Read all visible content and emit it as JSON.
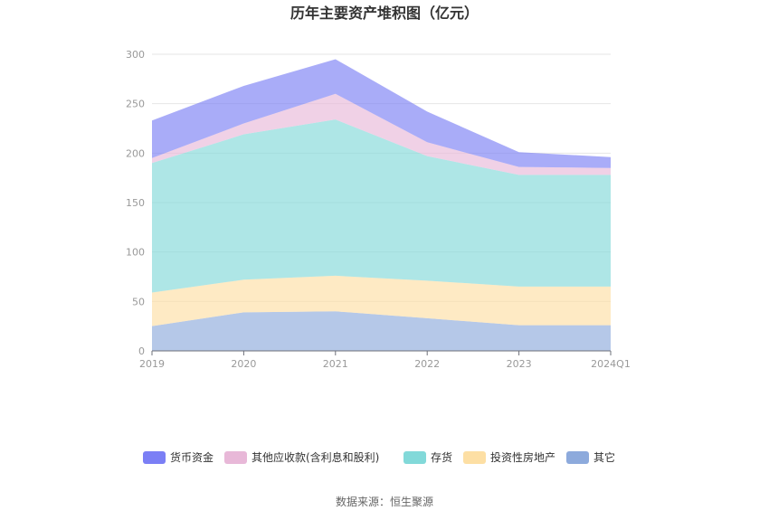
{
  "chart_data": {
    "type": "area",
    "stacked": true,
    "title": "历年主要资产堆积图（亿元）",
    "categories": [
      "2019",
      "2020",
      "2021",
      "2022",
      "2023",
      "2024Q1"
    ],
    "ylim": [
      0,
      300
    ],
    "yticks": [
      0,
      50,
      100,
      150,
      200,
      250,
      300
    ],
    "grid": true,
    "legend_position": "bottom",
    "series": [
      {
        "name": "货币资金",
        "color": "#7b7ff5",
        "values": [
          38,
          38,
          35,
          31,
          15,
          11
        ]
      },
      {
        "name": "其他应收款(含利息和股利)",
        "color": "#e8b8d8",
        "values": [
          5,
          11,
          26,
          14,
          8,
          7
        ]
      },
      {
        "name": "存货",
        "color": "#82d9d9",
        "values": [
          131,
          147,
          158,
          126,
          113,
          113
        ]
      },
      {
        "name": "投资性房地产",
        "color": "#fddfa4",
        "values": [
          34,
          33,
          36,
          38,
          39,
          39
        ]
      },
      {
        "name": "其它",
        "color": "#8daadc",
        "values": [
          25,
          39,
          40,
          33,
          26,
          26
        ]
      }
    ]
  },
  "source_text": "数据来源：恒生聚源"
}
